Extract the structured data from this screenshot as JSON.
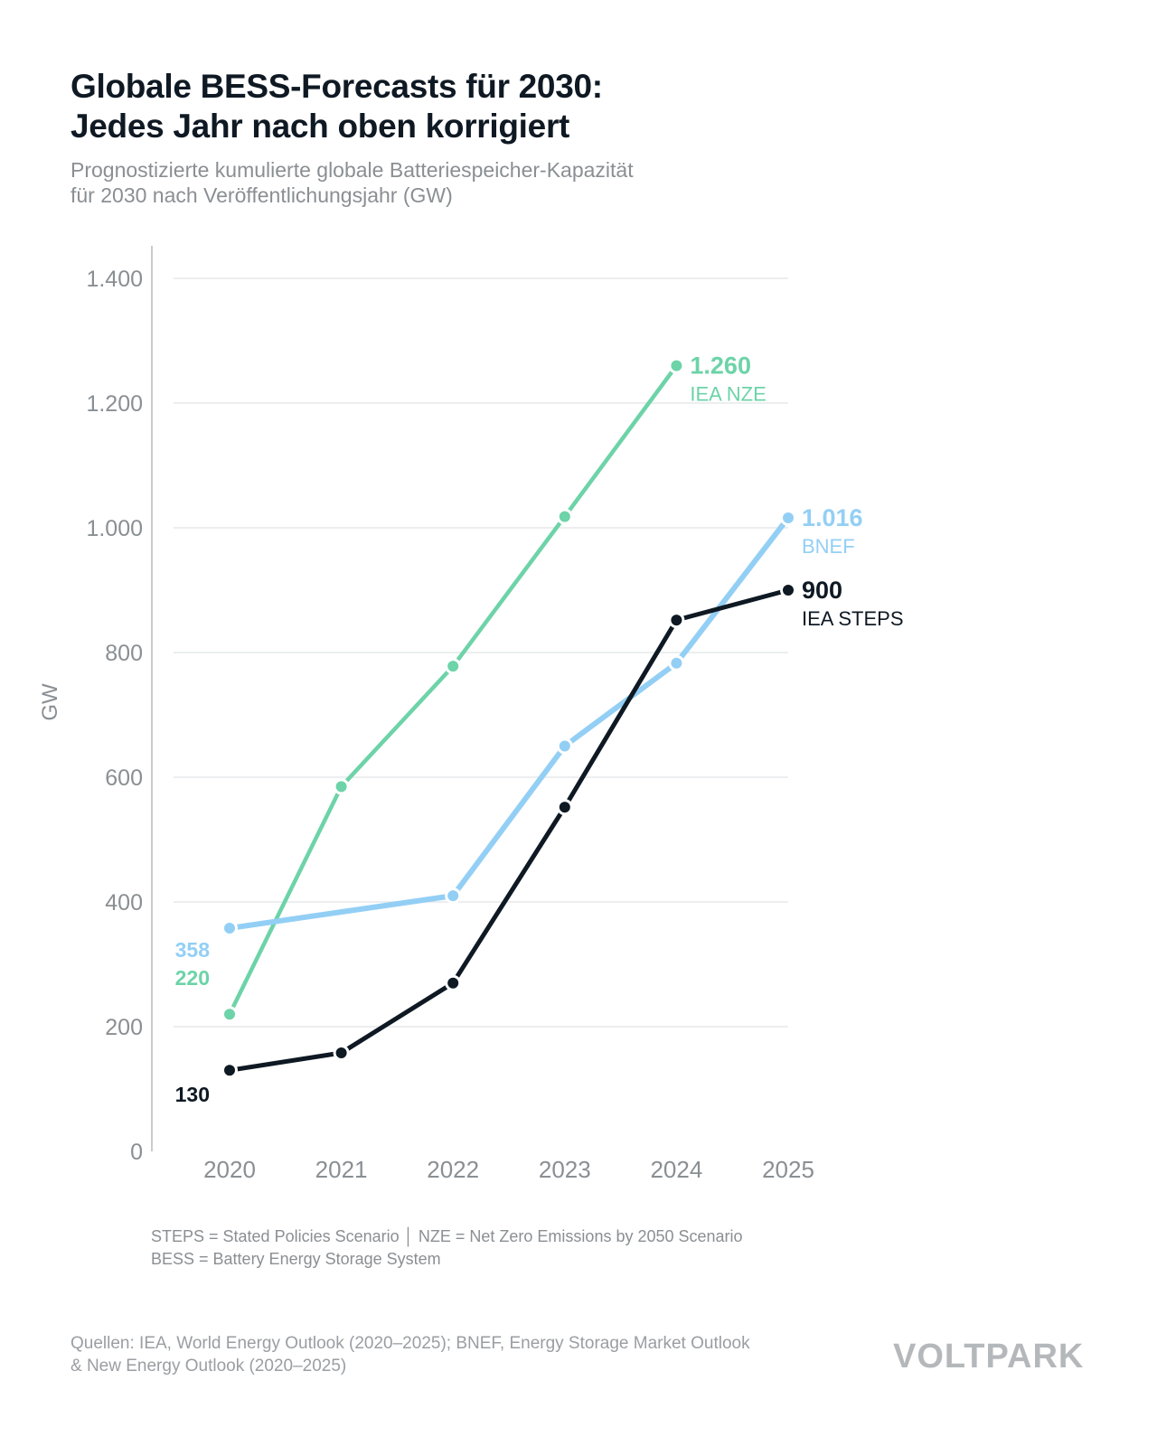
{
  "title_lines": [
    "Globale BESS-Forecasts für 2030:",
    "Jedes Jahr nach oben korrigiert"
  ],
  "subtitle_lines": [
    "Prognostizierte kumulierte globale Batteriespeicher-Kapazität",
    "für 2030 nach Veröffentlichungsjahr (GW)"
  ],
  "notes": [
    "STEPS = Stated Policies Scenario  │  NZE = Net Zero Emissions by 2050 Scenario",
    "BESS = Battery Energy Storage System"
  ],
  "sources": [
    "Quellen: IEA, World Energy Outlook (2020–2025); BNEF, Energy Storage Market Outlook",
    "& New Energy Outlook (2020–2025)"
  ],
  "logo": "VOLTPARK",
  "chart_data": {
    "type": "line",
    "ylabel": "GW",
    "xlabel": "",
    "ylim": [
      0,
      1400
    ],
    "yticks": [
      0,
      200,
      400,
      600,
      800,
      1000,
      1200,
      1400
    ],
    "ytick_labels": [
      "0",
      "200",
      "400",
      "600",
      "800",
      "1.000",
      "1.200",
      "1.400"
    ],
    "categories": [
      "2020",
      "2021",
      "2022",
      "2023",
      "2024",
      "2025"
    ],
    "grid": true,
    "legend": "inline at line ends",
    "series": [
      {
        "name": "IEA NZE",
        "color": "#6dd3a8",
        "values": [
          220,
          585,
          778,
          1018,
          1260,
          null
        ],
        "start_label": "220",
        "end_label": "1.260"
      },
      {
        "name": "BNEF",
        "color": "#93cff5",
        "values": [
          358,
          null,
          410,
          650,
          783,
          1016
        ],
        "start_label": "358",
        "end_label": "1.016"
      },
      {
        "name": "IEA STEPS",
        "color": "#0f1923",
        "values": [
          130,
          158,
          270,
          552,
          852,
          900
        ],
        "start_label": "130",
        "end_label": "900"
      }
    ]
  }
}
